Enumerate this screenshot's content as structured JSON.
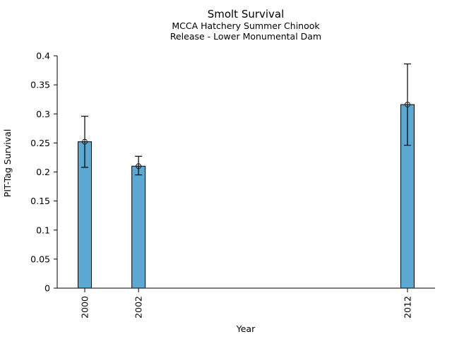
{
  "chart_data": {
    "type": "bar",
    "title": "Smolt Survival",
    "subtitle_lines": [
      "MCCA Hatchery Summer Chinook",
      "Release - Lower Monumental Dam"
    ],
    "xlabel": "Year",
    "ylabel": "PIT-Tag Survival",
    "categories": [
      "2000",
      "2002",
      "2012"
    ],
    "years": [
      2000,
      2002,
      2012
    ],
    "values": [
      0.252,
      0.21,
      0.316
    ],
    "error_low": [
      0.208,
      0.195,
      0.246
    ],
    "error_high": [
      0.296,
      0.227,
      0.386
    ],
    "ylim": [
      0,
      0.4
    ],
    "yticks": [
      0,
      0.05,
      0.1,
      0.15,
      0.2,
      0.25,
      0.3,
      0.35,
      0.4
    ],
    "ytick_labels": [
      "0",
      "0.05",
      "0.1",
      "0.15",
      "0.2",
      "0.25",
      "0.3",
      "0.35",
      "0.4"
    ],
    "marker": "circle-plus",
    "legend": "none",
    "grid": "off",
    "colors": {
      "bar_fill": "#5BA8D2",
      "bar_edge": "#000000",
      "axis": "#000000",
      "error_bar": "#000000",
      "marker_stroke": "#1a1a1a",
      "background": "#FFFFFF"
    }
  }
}
